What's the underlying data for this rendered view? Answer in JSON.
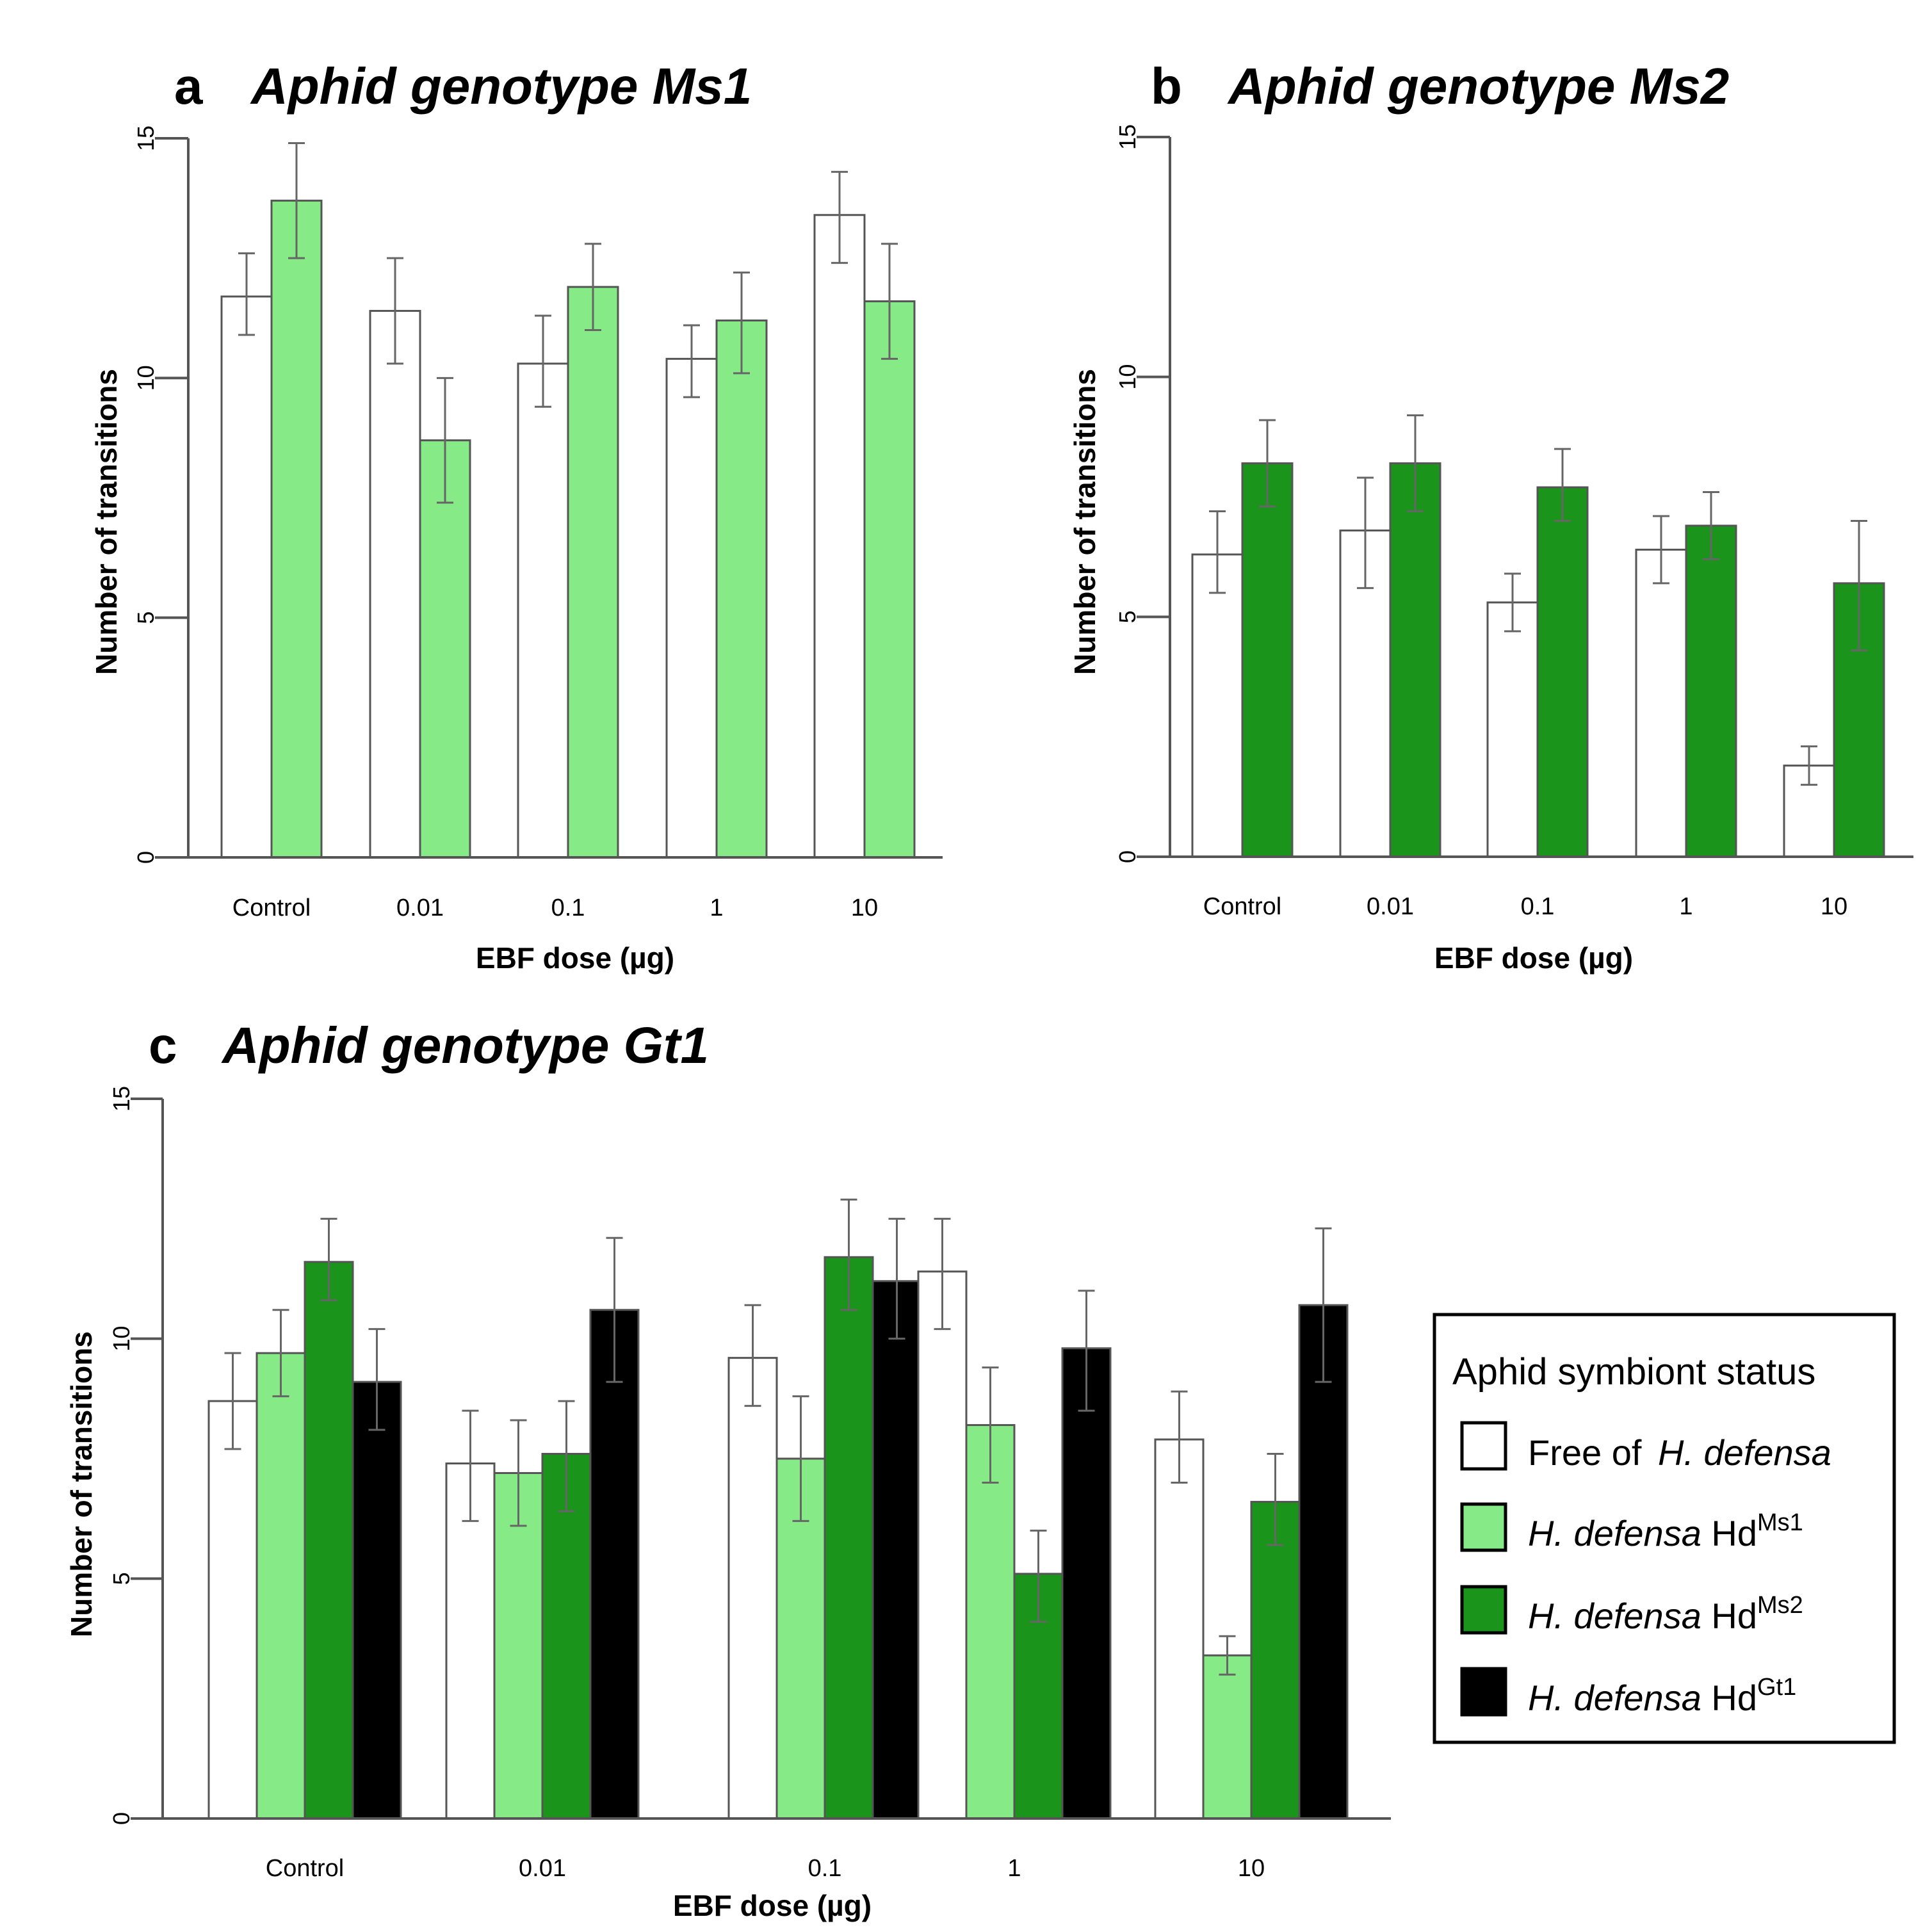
{
  "chart_data": [
    {
      "id": "a",
      "type": "bar",
      "panel_letter": "a",
      "title": "Aphid genotype Ms1",
      "xlabel": "EBF dose (µg)",
      "ylabel": "Number of transitions",
      "ylim": [
        0,
        15
      ],
      "yticks": [
        "0",
        "5",
        "10",
        "15"
      ],
      "categories": [
        "Control",
        "0.01",
        "0.1",
        "1",
        "10"
      ],
      "series": [
        {
          "key": "free",
          "name": "Free of H. defensa",
          "values": [
            11.7,
            11.4,
            10.3,
            10.4,
            13.4
          ],
          "err_low": [
            10.9,
            10.3,
            9.4,
            9.6,
            12.4
          ],
          "err_high": [
            12.6,
            12.5,
            11.3,
            11.1,
            14.3
          ]
        },
        {
          "key": "ms1",
          "name": "H. defensa HdMs1",
          "values": [
            13.7,
            8.7,
            11.9,
            11.2,
            11.6
          ],
          "err_low": [
            12.5,
            7.4,
            11.0,
            10.1,
            10.4
          ],
          "err_high": [
            14.9,
            10.0,
            12.8,
            12.2,
            12.8
          ]
        }
      ]
    },
    {
      "id": "b",
      "type": "bar",
      "panel_letter": "b",
      "title": "Aphid genotype Ms2",
      "xlabel": "EBF dose (µg)",
      "ylabel": "Number of transitions",
      "ylim": [
        0,
        15
      ],
      "yticks": [
        "0",
        "5",
        "10",
        "15"
      ],
      "categories": [
        "Control",
        "0.01",
        "0.1",
        "1",
        "10"
      ],
      "series": [
        {
          "key": "free",
          "name": "Free of H. defensa",
          "values": [
            6.3,
            6.8,
            5.3,
            6.4,
            1.9
          ],
          "err_low": [
            5.5,
            5.6,
            4.7,
            5.7,
            1.5
          ],
          "err_high": [
            7.2,
            7.9,
            5.9,
            7.1,
            2.3
          ]
        },
        {
          "key": "ms2",
          "name": "H. defensa HdMs2",
          "values": [
            8.2,
            8.2,
            7.7,
            6.9,
            5.7
          ],
          "err_low": [
            7.3,
            7.2,
            7.0,
            6.2,
            4.3
          ],
          "err_high": [
            9.1,
            9.2,
            8.5,
            7.6,
            7.0
          ]
        }
      ]
    },
    {
      "id": "c",
      "type": "bar",
      "panel_letter": "c",
      "title": "Aphid genotype Gt1",
      "xlabel": "EBF dose (µg)",
      "ylabel": "Number of transitions",
      "ylim": [
        0,
        15
      ],
      "yticks": [
        "0",
        "5",
        "10",
        "15"
      ],
      "categories": [
        "Control",
        "0.01",
        "0.1",
        "1",
        "10"
      ],
      "series": [
        {
          "key": "free",
          "name": "Free of H. defensa",
          "values": [
            8.7,
            7.4,
            9.6,
            11.4,
            7.9
          ],
          "err_low": [
            7.7,
            6.2,
            8.6,
            10.2,
            7.0
          ],
          "err_high": [
            9.7,
            8.5,
            10.7,
            12.5,
            8.9
          ]
        },
        {
          "key": "ms1",
          "name": "H. defensa HdMs1",
          "values": [
            9.7,
            7.2,
            7.5,
            8.2,
            3.4
          ],
          "err_low": [
            8.8,
            6.1,
            6.2,
            7.0,
            3.0
          ],
          "err_high": [
            10.6,
            8.3,
            8.8,
            9.4,
            3.8
          ]
        },
        {
          "key": "ms2",
          "name": "H. defensa HdMs2",
          "values": [
            11.6,
            7.6,
            11.7,
            5.1,
            6.6
          ],
          "err_low": [
            10.8,
            6.4,
            10.6,
            4.1,
            5.7
          ],
          "err_high": [
            12.5,
            8.7,
            12.9,
            6.0,
            7.6
          ]
        },
        {
          "key": "gt1",
          "name": "H. defensa HdGt1",
          "values": [
            9.1,
            10.6,
            11.2,
            9.8,
            10.7
          ],
          "err_low": [
            8.1,
            9.1,
            10.0,
            8.5,
            9.1
          ],
          "err_high": [
            10.2,
            12.1,
            12.5,
            11.0,
            12.3
          ]
        }
      ]
    }
  ],
  "colors": {
    "free": "#ffffff",
    "ms1": "#86ea86",
    "ms2": "#1b941b",
    "gt1": "#000000",
    "error_bar": "#666666",
    "axis": "#555555"
  },
  "legend": {
    "title": "Aphid symbiont status",
    "items": [
      {
        "key": "free",
        "plain": "Free of ",
        "italic": "H. defensa",
        "suffix": "",
        "sup": ""
      },
      {
        "key": "ms1",
        "plain": "",
        "italic": "H. defensa",
        "suffix": " Hd",
        "sup": "Ms1"
      },
      {
        "key": "ms2",
        "plain": "",
        "italic": "H. defensa",
        "suffix": " Hd",
        "sup": "Ms2"
      },
      {
        "key": "gt1",
        "plain": "",
        "italic": "H. defensa",
        "suffix": " Hd",
        "sup": "Gt1"
      }
    ]
  }
}
